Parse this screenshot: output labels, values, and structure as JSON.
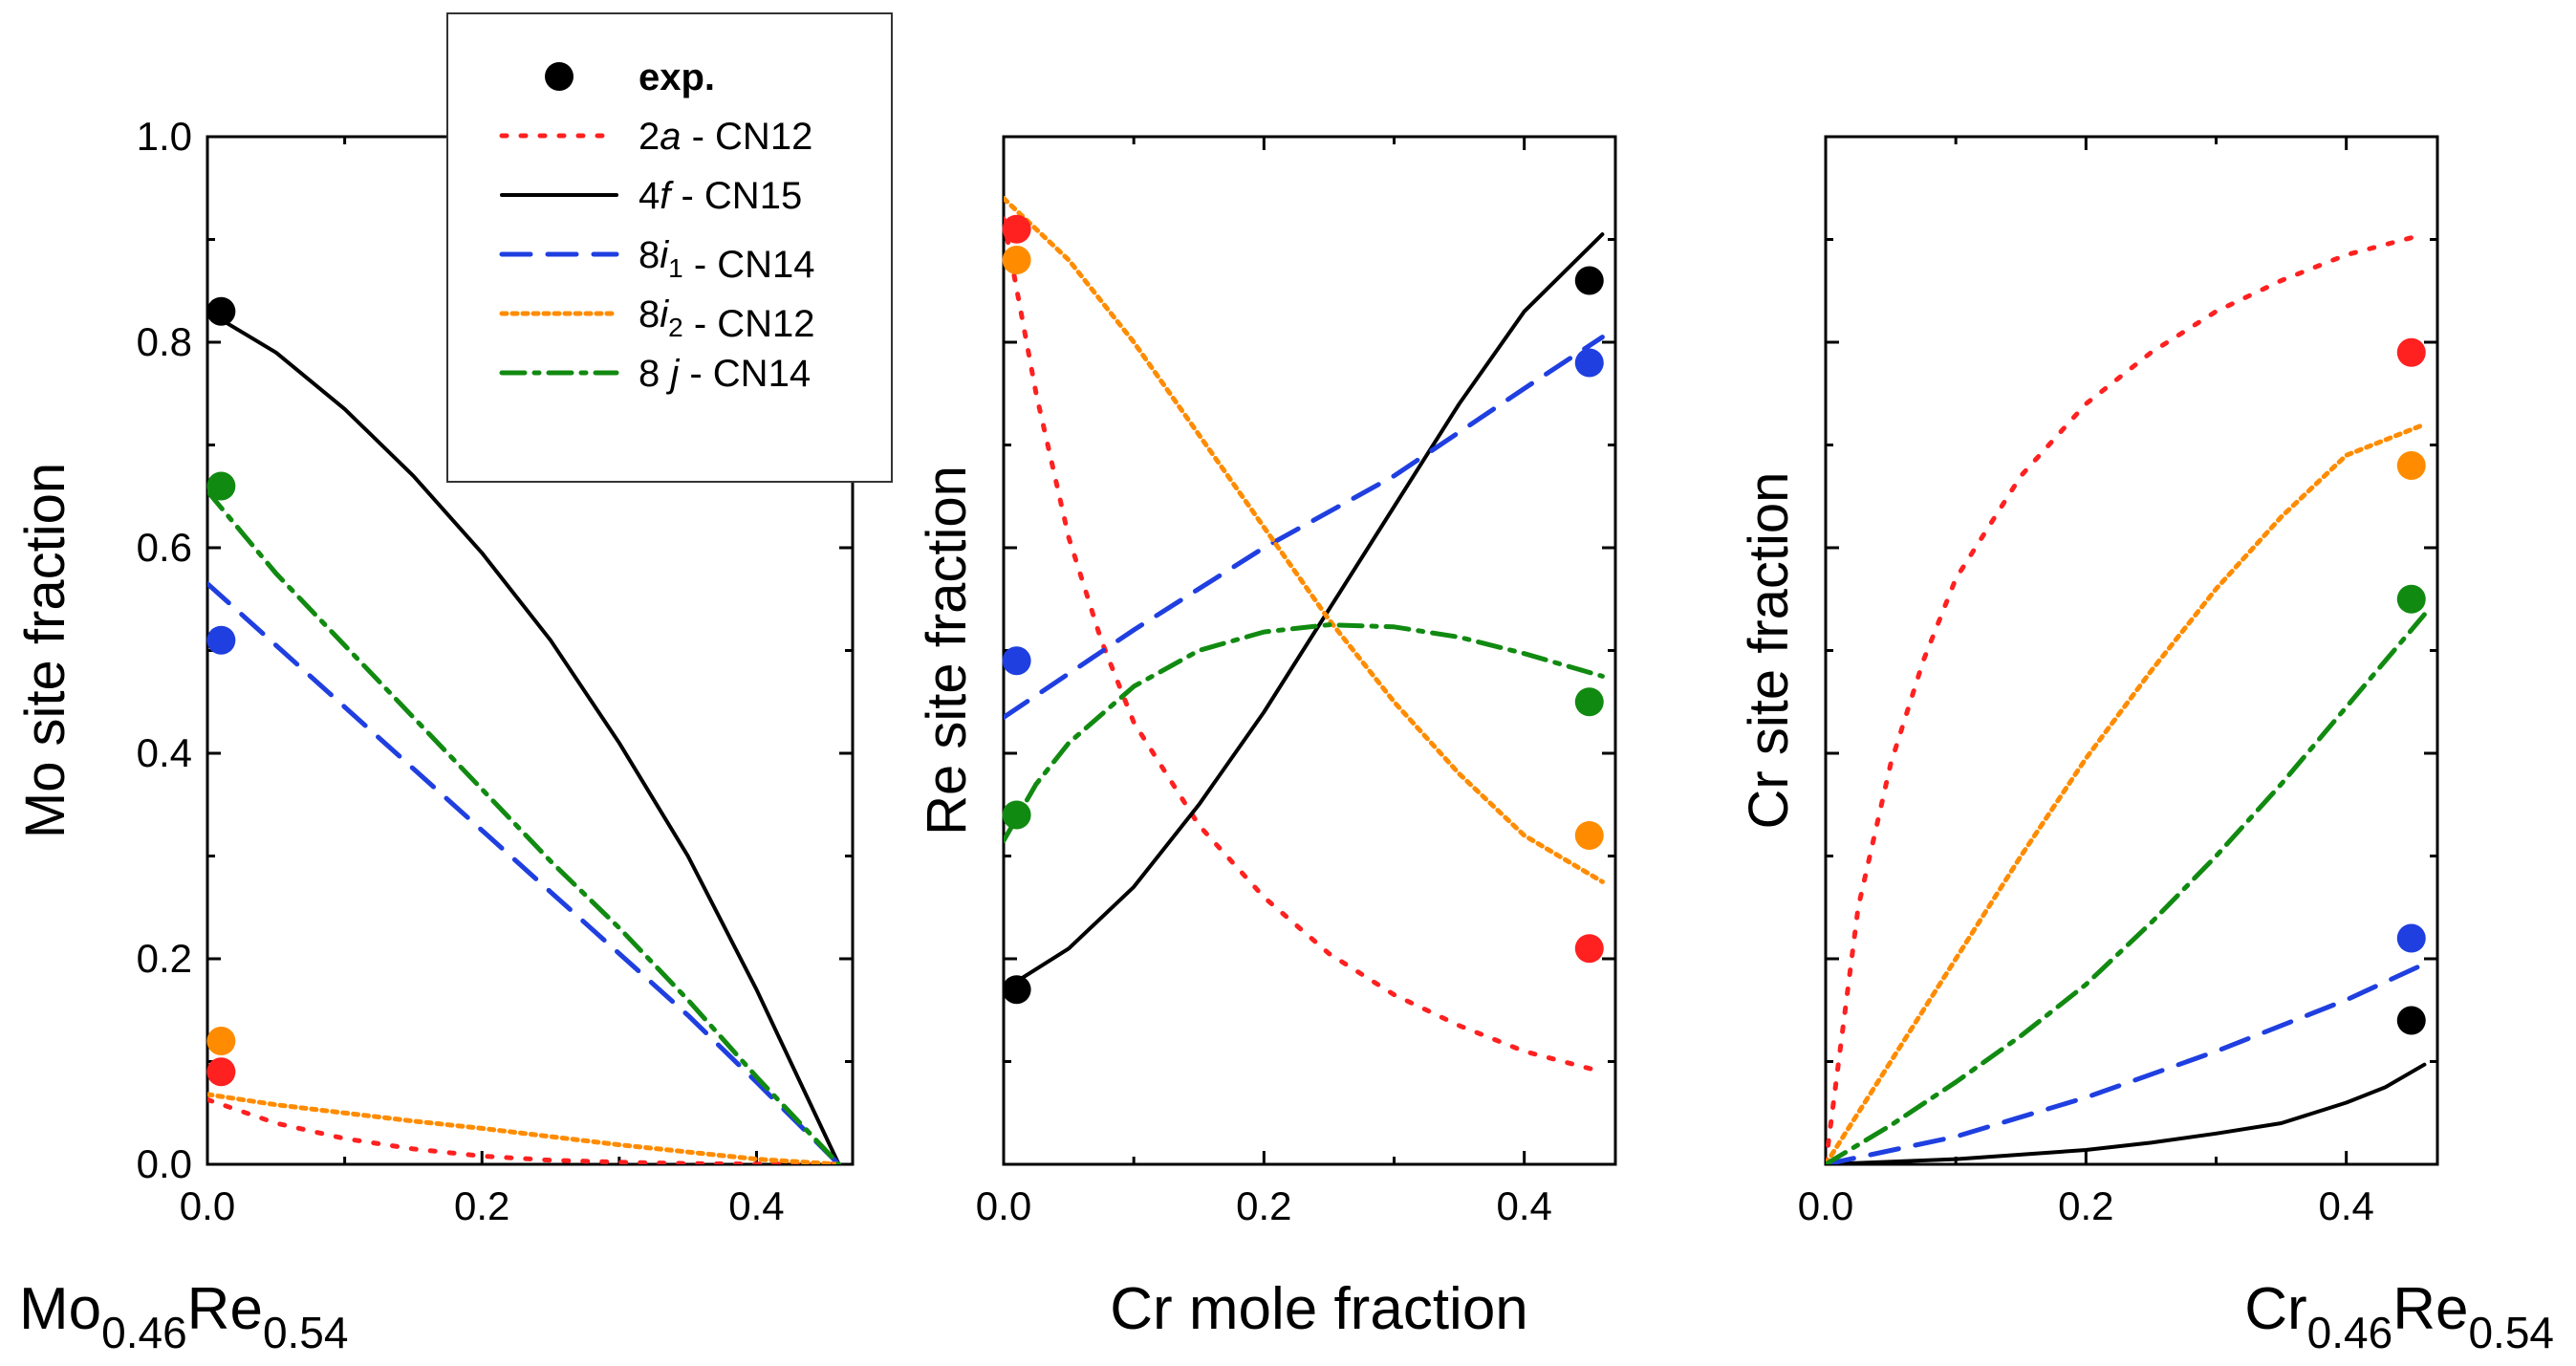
{
  "figure": {
    "bottom_left_label": {
      "base1": "Mo",
      "sub1": "0.46",
      "base2": "Re",
      "sub2": "0.54"
    },
    "bottom_center_label": "Cr mole fraction",
    "bottom_right_label": {
      "base1": "Cr",
      "sub1": "0.46",
      "base2": "Re",
      "sub2": "0.54"
    }
  },
  "legend": {
    "entries": [
      {
        "key": "exp",
        "kind": "marker",
        "color": "#000000",
        "parts": [
          {
            "t": "exp.",
            "bold": true
          }
        ]
      },
      {
        "key": "2a",
        "kind": "line",
        "style": "dot-sparse",
        "color": "#ff2020",
        "parts": [
          {
            "t": "2"
          },
          {
            "t": "a",
            "italic": true
          },
          {
            "t": " - CN12"
          }
        ]
      },
      {
        "key": "4f",
        "kind": "line",
        "style": "solid",
        "color": "#000000",
        "parts": [
          {
            "t": "4"
          },
          {
            "t": "f",
            "italic": true
          },
          {
            "t": " - CN15"
          }
        ]
      },
      {
        "key": "8i1",
        "kind": "line",
        "style": "dash",
        "color": "#1f3fe0",
        "parts": [
          {
            "t": "8"
          },
          {
            "t": "i",
            "italic": true
          },
          {
            "t": "1",
            "sub": true
          },
          {
            "t": " - CN14"
          }
        ]
      },
      {
        "key": "8i2",
        "kind": "line",
        "style": "dot-dense",
        "color": "#ff8c00",
        "parts": [
          {
            "t": "8"
          },
          {
            "t": "i",
            "italic": true
          },
          {
            "t": "2",
            "sub": true
          },
          {
            "t": " - CN12"
          }
        ]
      },
      {
        "key": "8j",
        "kind": "line",
        "style": "dash-dot",
        "color": "#118a11",
        "parts": [
          {
            "t": "8 "
          },
          {
            "t": "j",
            "italic": true
          },
          {
            "t": " - CN14"
          }
        ]
      }
    ]
  },
  "chart_data": [
    {
      "type": "line",
      "panel": "Mo",
      "ylabel": "Mo site fraction",
      "xlim": [
        0,
        0.47
      ],
      "ylim": [
        0,
        1.0
      ],
      "xticks": [
        "0.0",
        "0.2",
        "0.4"
      ],
      "yticks": [
        "0.0",
        "0.2",
        "0.4",
        "0.6",
        "0.8",
        "1.0"
      ],
      "show_ytick_labels": true,
      "series": [
        {
          "key": "2a",
          "x": [
            0,
            0.05,
            0.1,
            0.15,
            0.2,
            0.25,
            0.3,
            0.35,
            0.4,
            0.46
          ],
          "y": [
            0.063,
            0.04,
            0.025,
            0.015,
            0.008,
            0.004,
            0.002,
            0.0007,
            0.0002,
            0
          ]
        },
        {
          "key": "4f",
          "x": [
            0,
            0.05,
            0.1,
            0.15,
            0.2,
            0.25,
            0.3,
            0.35,
            0.4,
            0.46
          ],
          "y": [
            0.83,
            0.79,
            0.735,
            0.67,
            0.595,
            0.51,
            0.41,
            0.3,
            0.17,
            0
          ]
        },
        {
          "key": "8i1",
          "x": [
            0,
            0.05,
            0.1,
            0.15,
            0.2,
            0.25,
            0.3,
            0.35,
            0.4,
            0.46
          ],
          "y": [
            0.565,
            0.505,
            0.445,
            0.385,
            0.325,
            0.265,
            0.205,
            0.145,
            0.08,
            0
          ]
        },
        {
          "key": "8i2",
          "x": [
            0,
            0.05,
            0.1,
            0.15,
            0.2,
            0.25,
            0.3,
            0.35,
            0.4,
            0.46
          ],
          "y": [
            0.068,
            0.058,
            0.05,
            0.042,
            0.035,
            0.027,
            0.019,
            0.012,
            0.005,
            0
          ]
        },
        {
          "key": "8j",
          "x": [
            0,
            0.05,
            0.1,
            0.15,
            0.2,
            0.25,
            0.3,
            0.35,
            0.4,
            0.46
          ],
          "y": [
            0.655,
            0.575,
            0.505,
            0.435,
            0.365,
            0.295,
            0.23,
            0.16,
            0.085,
            0
          ]
        }
      ],
      "points": [
        {
          "key": "exp",
          "x": 0.01,
          "y": 0.83
        },
        {
          "key": "8j",
          "x": 0.01,
          "y": 0.66
        },
        {
          "key": "8i1",
          "x": 0.01,
          "y": 0.51
        },
        {
          "key": "8i2",
          "x": 0.01,
          "y": 0.12
        },
        {
          "key": "2a",
          "x": 0.01,
          "y": 0.09
        }
      ]
    },
    {
      "type": "line",
      "panel": "Re",
      "ylabel": "Re site fraction",
      "xlim": [
        0,
        0.47
      ],
      "ylim": [
        0,
        1.0
      ],
      "xticks": [
        "0.0",
        "0.2",
        "0.4"
      ],
      "yticks": [
        "",
        "",
        "",
        "",
        "",
        ""
      ],
      "show_ytick_labels": false,
      "series": [
        {
          "key": "2a",
          "x": [
            0,
            0.025,
            0.05,
            0.075,
            0.1,
            0.15,
            0.2,
            0.25,
            0.3,
            0.35,
            0.4,
            0.46
          ],
          "y": [
            0.92,
            0.75,
            0.61,
            0.51,
            0.43,
            0.33,
            0.26,
            0.205,
            0.165,
            0.135,
            0.11,
            0.09
          ]
        },
        {
          "key": "4f",
          "x": [
            0,
            0.05,
            0.1,
            0.15,
            0.2,
            0.25,
            0.3,
            0.35,
            0.4,
            0.46
          ],
          "y": [
            0.17,
            0.21,
            0.27,
            0.35,
            0.44,
            0.54,
            0.64,
            0.74,
            0.83,
            0.905
          ]
        },
        {
          "key": "8i1",
          "x": [
            0,
            0.1,
            0.2,
            0.3,
            0.4,
            0.46
          ],
          "y": [
            0.435,
            0.52,
            0.6,
            0.67,
            0.755,
            0.805
          ]
        },
        {
          "key": "8i2",
          "x": [
            0,
            0.05,
            0.1,
            0.15,
            0.2,
            0.25,
            0.3,
            0.35,
            0.4,
            0.46
          ],
          "y": [
            0.94,
            0.88,
            0.8,
            0.71,
            0.62,
            0.53,
            0.45,
            0.38,
            0.32,
            0.275
          ]
        },
        {
          "key": "8j",
          "x": [
            0,
            0.025,
            0.05,
            0.1,
            0.15,
            0.2,
            0.25,
            0.3,
            0.35,
            0.4,
            0.46
          ],
          "y": [
            0.315,
            0.37,
            0.41,
            0.465,
            0.5,
            0.518,
            0.525,
            0.523,
            0.513,
            0.497,
            0.475
          ]
        }
      ],
      "points": [
        {
          "key": "2a",
          "x": 0.01,
          "y": 0.91
        },
        {
          "key": "8i2",
          "x": 0.01,
          "y": 0.88
        },
        {
          "key": "8i1",
          "x": 0.01,
          "y": 0.49
        },
        {
          "key": "8j",
          "x": 0.01,
          "y": 0.34
        },
        {
          "key": "exp",
          "x": 0.01,
          "y": 0.17
        },
        {
          "key": "exp",
          "x": 0.45,
          "y": 0.86
        },
        {
          "key": "8i1",
          "x": 0.45,
          "y": 0.78
        },
        {
          "key": "8j",
          "x": 0.45,
          "y": 0.45
        },
        {
          "key": "8i2",
          "x": 0.45,
          "y": 0.32
        },
        {
          "key": "2a",
          "x": 0.45,
          "y": 0.21
        }
      ]
    },
    {
      "type": "line",
      "panel": "Cr",
      "ylabel": "Cr site fraction",
      "xlim": [
        0,
        0.47
      ],
      "ylim": [
        0,
        1.0
      ],
      "xticks": [
        "0.0",
        "0.2",
        "0.4"
      ],
      "yticks": [
        "",
        "",
        "",
        "",
        "",
        ""
      ],
      "show_ytick_labels": false,
      "series": [
        {
          "key": "2a",
          "x": [
            0,
            0.025,
            0.05,
            0.075,
            0.1,
            0.15,
            0.2,
            0.25,
            0.3,
            0.35,
            0.4,
            0.46
          ],
          "y": [
            0,
            0.25,
            0.39,
            0.49,
            0.57,
            0.67,
            0.74,
            0.79,
            0.83,
            0.86,
            0.885,
            0.905
          ]
        },
        {
          "key": "4f",
          "x": [
            0,
            0.1,
            0.2,
            0.25,
            0.3,
            0.35,
            0.4,
            0.43,
            0.46
          ],
          "y": [
            0,
            0.005,
            0.014,
            0.021,
            0.03,
            0.04,
            0.06,
            0.075,
            0.097
          ]
        },
        {
          "key": "8i1",
          "x": [
            0,
            0.1,
            0.2,
            0.3,
            0.4,
            0.46
          ],
          "y": [
            0,
            0.027,
            0.065,
            0.11,
            0.16,
            0.195
          ]
        },
        {
          "key": "8i2",
          "x": [
            0,
            0.05,
            0.1,
            0.15,
            0.2,
            0.25,
            0.3,
            0.35,
            0.4,
            0.46
          ],
          "y": [
            0,
            0.1,
            0.2,
            0.3,
            0.395,
            0.48,
            0.56,
            0.63,
            0.69,
            0.72
          ]
        },
        {
          "key": "8j",
          "x": [
            0,
            0.05,
            0.1,
            0.15,
            0.2,
            0.25,
            0.3,
            0.35,
            0.4,
            0.46
          ],
          "y": [
            0,
            0.038,
            0.08,
            0.125,
            0.175,
            0.235,
            0.3,
            0.37,
            0.445,
            0.535
          ]
        }
      ],
      "points": [
        {
          "key": "2a",
          "x": 0.45,
          "y": 0.79
        },
        {
          "key": "8i2",
          "x": 0.45,
          "y": 0.68
        },
        {
          "key": "8j",
          "x": 0.45,
          "y": 0.55
        },
        {
          "key": "8i1",
          "x": 0.45,
          "y": 0.22
        },
        {
          "key": "exp",
          "x": 0.45,
          "y": 0.14
        }
      ]
    }
  ]
}
